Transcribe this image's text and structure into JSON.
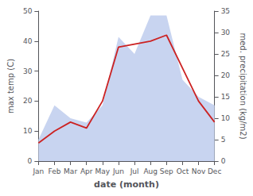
{
  "chart_data": {
    "type": "line",
    "xlabel": "date (month)",
    "ylabel": "max temp (C)",
    "y2label": "med. precipitation (kg/m2)",
    "categories": [
      "Jan",
      "Feb",
      "Mar",
      "Apr",
      "May",
      "Jun",
      "Jul",
      "Aug",
      "Sep",
      "Oct",
      "Nov",
      "Dec"
    ],
    "series": [
      {
        "type": "area",
        "color": "#c8d4f0",
        "axis": "y2",
        "values": [
          5,
          13,
          10,
          9,
          13,
          29,
          25,
          34,
          34,
          19,
          15,
          13
        ]
      },
      {
        "type": "line",
        "color": "#cc2222",
        "values": [
          6,
          10,
          13,
          11,
          20,
          38,
          39,
          40,
          42,
          31,
          20,
          13
        ]
      }
    ],
    "ylim": [
      0,
      50
    ],
    "yticks": [
      0,
      10,
      20,
      30,
      40,
      50
    ],
    "y2lim": [
      0,
      35
    ],
    "y2ticks": [
      0,
      5,
      10,
      15,
      20,
      25,
      30,
      35
    ],
    "grid": false
  }
}
